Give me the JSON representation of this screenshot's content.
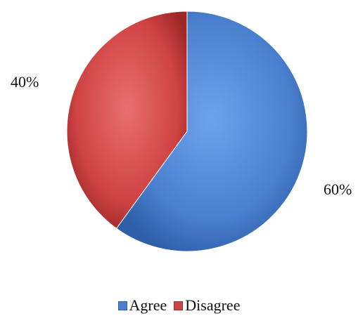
{
  "chart_data": {
    "type": "pie",
    "categories": [
      "Agree",
      "Disagree"
    ],
    "values": [
      60,
      40
    ],
    "data_labels": [
      "60%",
      "40%"
    ],
    "colors": [
      "#4A7FCF",
      "#CF4343"
    ],
    "start_angle": "12 o'clock, clockwise",
    "legend_position": "bottom",
    "style": "3D beveled gradient"
  },
  "legend": {
    "items": [
      {
        "label": "Agree",
        "color": "#4A7FCF"
      },
      {
        "label": "Disagree",
        "color": "#CF4343"
      }
    ]
  }
}
